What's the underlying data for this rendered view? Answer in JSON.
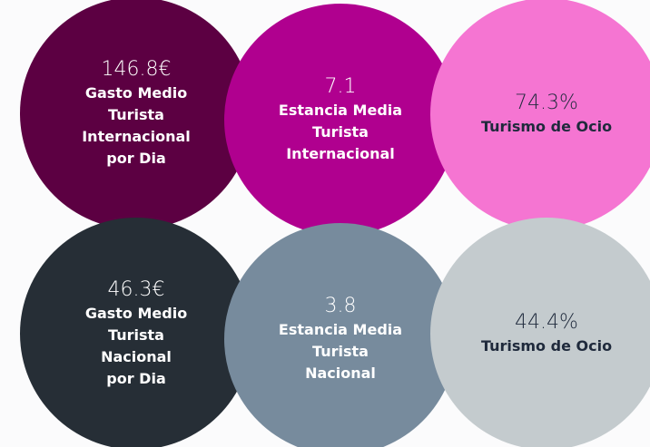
{
  "circles": [
    {
      "value": "146.8€",
      "label": [
        "Gasto Medio",
        "Turista",
        "Internacional",
        "por Dia"
      ],
      "color": "#5c0042",
      "text_color": "#ffffff"
    },
    {
      "value": "7.1",
      "label": [
        "Estancia Media",
        "Turista",
        "Internacional"
      ],
      "color": "#b0008f",
      "text_color": "#ffffff"
    },
    {
      "value": "74.3%",
      "label": [
        "Turismo de Ocio"
      ],
      "color": "#f575d2",
      "text_color": "#1f2a3c"
    },
    {
      "value": "46.3€",
      "label": [
        "Gasto Medio",
        "Turista",
        "Nacional",
        "por Dia"
      ],
      "color": "#262e36",
      "text_color": "#ffffff"
    },
    {
      "value": "3.8",
      "label": [
        "Estancia Media",
        "Turista",
        "Nacional"
      ],
      "color": "#778b9d",
      "text_color": "#ffffff"
    },
    {
      "value": "44.4%",
      "label": [
        "Turismo de Ocio"
      ],
      "color": "#c4cbce",
      "text_color": "#1f2a3c"
    }
  ]
}
